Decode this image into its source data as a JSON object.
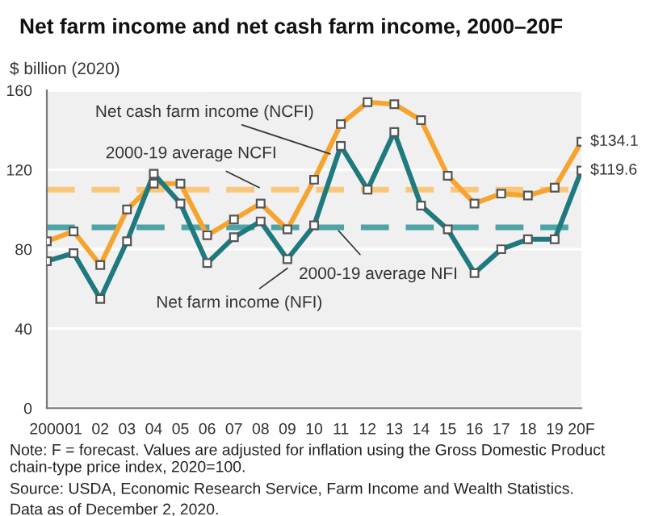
{
  "chart_data": {
    "type": "line",
    "title": "Net farm income and net cash farm income, 2000–20F",
    "ylabel": "$ billion (2020)",
    "categories": [
      "2000",
      "01",
      "02",
      "03",
      "04",
      "05",
      "06",
      "07",
      "08",
      "09",
      "10",
      "11",
      "12",
      "13",
      "14",
      "15",
      "16",
      "17",
      "18",
      "19",
      "20F"
    ],
    "series": [
      {
        "name": "Net cash farm income (NCFI)",
        "color": "#f5a52f",
        "values": [
          84,
          89,
          72,
          100,
          113,
          113,
          87,
          95,
          103,
          90,
          115,
          143,
          154,
          153,
          145,
          117,
          103,
          108,
          107,
          111,
          134.1
        ],
        "value_labels": [
          null,
          null,
          null,
          null,
          null,
          null,
          null,
          null,
          null,
          null,
          null,
          null,
          null,
          null,
          null,
          null,
          null,
          null,
          null,
          null,
          "$134.1"
        ]
      },
      {
        "name": "Net farm income (NFI)",
        "color": "#1e7a7e",
        "values": [
          74,
          78,
          55,
          84,
          118,
          103,
          73,
          86,
          94,
          75,
          92,
          132,
          110,
          139,
          102,
          90,
          68,
          80,
          85,
          85,
          119.6
        ],
        "value_labels": [
          null,
          null,
          null,
          null,
          null,
          null,
          null,
          null,
          null,
          null,
          null,
          null,
          null,
          null,
          null,
          null,
          null,
          null,
          null,
          null,
          "$119.6"
        ]
      }
    ],
    "ref_lines": [
      {
        "axis": "y",
        "value": 110,
        "label": "2000-19 average NCFI",
        "color": "#f9c77c",
        "line_style": "dashed"
      },
      {
        "axis": "y",
        "value": 91,
        "label": "2000-19 average NFI",
        "color": "#4ea3a6",
        "line_style": "dashed"
      }
    ],
    "ylim": [
      0,
      160
    ],
    "yticks": [
      0,
      40,
      80,
      120,
      160
    ],
    "grid": "y",
    "marker": "square",
    "line_style": "solid",
    "legend": false,
    "annotations": [
      "Note: F = forecast. Values are adjusted for inflation using the Gross Domestic Product chain-type price index, 2020=100.",
      "Source: USDA, Economic Research Service, Farm Income and Wealth Statistics.",
      "Data as of December 2, 2020."
    ]
  }
}
